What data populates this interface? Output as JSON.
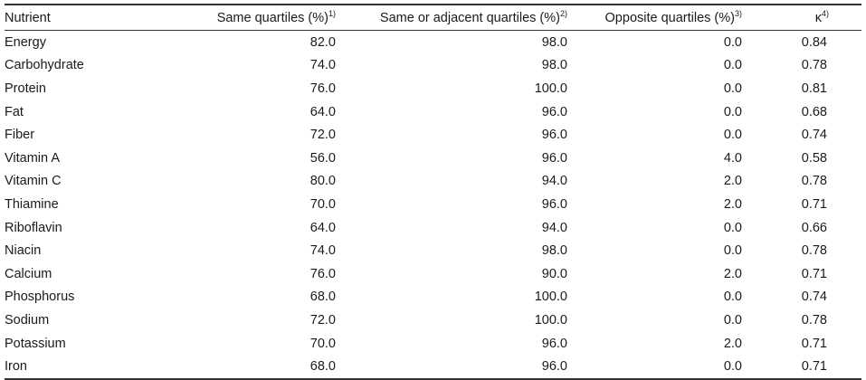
{
  "table": {
    "headers": {
      "nutrient": "Nutrient",
      "same": "Same quartiles (%)",
      "same_note": "1)",
      "adjacent": "Same or adjacent quartiles (%)",
      "adjacent_note": "2)",
      "opposite": "Opposite quartiles (%)",
      "opposite_note": "3)",
      "kappa": "κ",
      "kappa_note": "4)"
    },
    "rows": [
      {
        "nutrient": "Energy",
        "same": "82.0",
        "adjacent": "98.0",
        "opposite": "0.0",
        "kappa": "0.84"
      },
      {
        "nutrient": "Carbohydrate",
        "same": "74.0",
        "adjacent": "98.0",
        "opposite": "0.0",
        "kappa": "0.78"
      },
      {
        "nutrient": "Protein",
        "same": "76.0",
        "adjacent": "100.0",
        "opposite": "0.0",
        "kappa": "0.81"
      },
      {
        "nutrient": "Fat",
        "same": "64.0",
        "adjacent": "96.0",
        "opposite": "0.0",
        "kappa": "0.68"
      },
      {
        "nutrient": "Fiber",
        "same": "72.0",
        "adjacent": "96.0",
        "opposite": "0.0",
        "kappa": "0.74"
      },
      {
        "nutrient": "Vitamin A",
        "same": "56.0",
        "adjacent": "96.0",
        "opposite": "4.0",
        "kappa": "0.58"
      },
      {
        "nutrient": "Vitamin C",
        "same": "80.0",
        "adjacent": "94.0",
        "opposite": "2.0",
        "kappa": "0.78"
      },
      {
        "nutrient": "Thiamine",
        "same": "70.0",
        "adjacent": "96.0",
        "opposite": "2.0",
        "kappa": "0.71"
      },
      {
        "nutrient": "Riboflavin",
        "same": "64.0",
        "adjacent": "94.0",
        "opposite": "0.0",
        "kappa": "0.66"
      },
      {
        "nutrient": "Niacin",
        "same": "74.0",
        "adjacent": "98.0",
        "opposite": "0.0",
        "kappa": "0.78"
      },
      {
        "nutrient": "Calcium",
        "same": "76.0",
        "adjacent": "90.0",
        "opposite": "2.0",
        "kappa": "0.71"
      },
      {
        "nutrient": "Phosphorus",
        "same": "68.0",
        "adjacent": "100.0",
        "opposite": "0.0",
        "kappa": "0.74"
      },
      {
        "nutrient": "Sodium",
        "same": "72.0",
        "adjacent": "100.0",
        "opposite": "0.0",
        "kappa": "0.78"
      },
      {
        "nutrient": "Potassium",
        "same": "70.0",
        "adjacent": "96.0",
        "opposite": "2.0",
        "kappa": "0.71"
      },
      {
        "nutrient": "Iron",
        "same": "68.0",
        "adjacent": "96.0",
        "opposite": "0.0",
        "kappa": "0.71"
      }
    ]
  }
}
